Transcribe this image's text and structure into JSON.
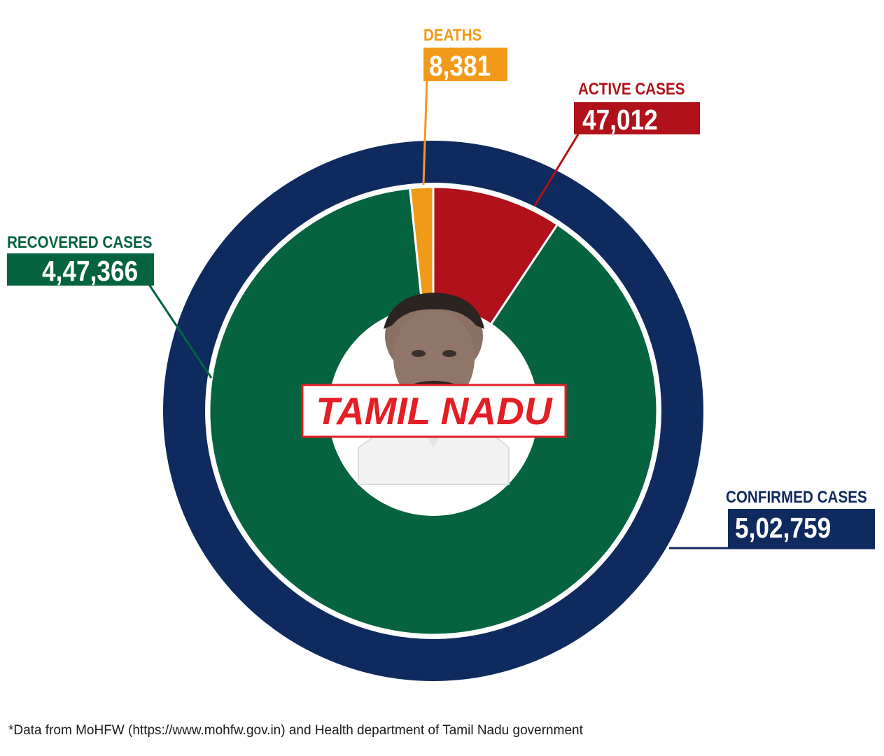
{
  "chart_data": {
    "type": "pie",
    "region": "TAMIL NADU",
    "total": {
      "label": "CONFIRMED CASES",
      "value": 502759,
      "display": "5,02,759",
      "color": "#0f2a5e"
    },
    "slices": [
      {
        "key": "recovered",
        "label": "RECOVERED CASES",
        "value": 447366,
        "display": "4,47,366",
        "color": "#066340"
      },
      {
        "key": "deaths",
        "label": "DEATHS",
        "value": 8381,
        "display": "8,381",
        "color": "#f19a19"
      },
      {
        "key": "active",
        "label": "ACTIVE CASES",
        "value": 47012,
        "display": "47,012",
        "color": "#b1111a"
      }
    ],
    "center_title_color": "#e31e24"
  },
  "footnote": "*Data from MoHFW (https://www.mohfw.gov.in) and Health department of Tamil Nadu government"
}
